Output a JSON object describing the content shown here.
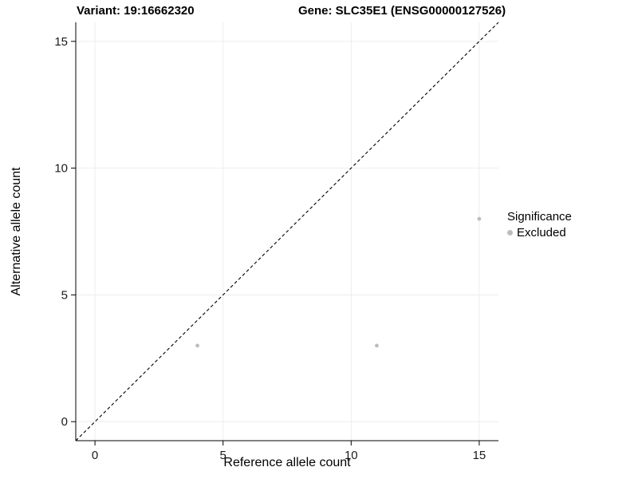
{
  "header": {
    "title_left": "Variant: 19:16662320",
    "title_right": "Gene: SLC35E1 (ENSG00000127526)"
  },
  "chart_data": {
    "type": "scatter",
    "titles": {
      "left": "Variant: 19:16662320",
      "right": "Gene: SLC35E1 (ENSG00000127526)"
    },
    "xlabel": "Reference allele count",
    "ylabel": "Alternative allele count",
    "xlim": [
      -0.75,
      15.75
    ],
    "ylim": [
      -0.75,
      15.75
    ],
    "ticks": [
      0,
      5,
      10,
      15
    ],
    "grid": true,
    "grid_color": "#ededed",
    "points": [
      {
        "x": 4,
        "y": 3
      },
      {
        "x": 11,
        "y": 3
      },
      {
        "x": 15,
        "y": 8
      }
    ],
    "point_color": "#bdbdbd",
    "reference_line": {
      "type": "identity",
      "style": "dashed",
      "color": "#000000"
    },
    "legend": {
      "title": "Significance",
      "position": "right",
      "items": [
        {
          "label": "Excluded",
          "color": "#bdbdbd"
        }
      ]
    }
  }
}
